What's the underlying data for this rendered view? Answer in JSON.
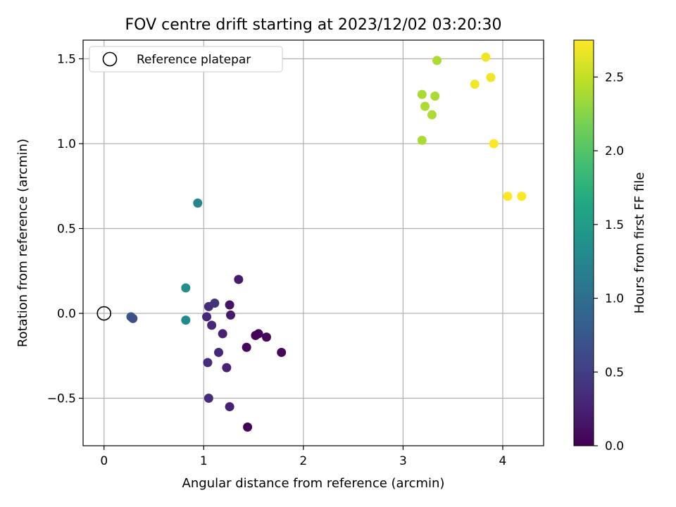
{
  "chart_data": {
    "type": "scatter",
    "title": "FOV centre drift starting at 2023/12/02 03:20:30",
    "xlabel": "Angular distance from reference (arcmin)",
    "ylabel": "Rotation from reference (arcmin)",
    "xlim": [
      -0.21,
      4.41
    ],
    "ylim": [
      -0.78,
      1.61
    ],
    "xticks": [
      0,
      1,
      2,
      3,
      4
    ],
    "xtick_labels": [
      "0",
      "1",
      "2",
      "3",
      "4"
    ],
    "yticks": [
      -0.5,
      0.0,
      0.5,
      1.0,
      1.5
    ],
    "ytick_labels": [
      "−0.5",
      "0.0",
      "0.5",
      "1.0",
      "1.5"
    ],
    "grid": true,
    "legend": {
      "position": "top-left",
      "entries": [
        "Reference platepar"
      ]
    },
    "reference_point": {
      "x": 0,
      "y": 0,
      "label": "Reference platepar"
    },
    "colorbar": {
      "label": "Hours from first FF file",
      "colormap": "viridis",
      "range": [
        0.0,
        2.75
      ],
      "ticks": [
        0.0,
        0.5,
        1.0,
        1.5,
        2.0,
        2.5
      ],
      "tick_labels": [
        "0.0",
        "0.5",
        "1.0",
        "1.5",
        "2.0",
        "2.5"
      ]
    },
    "points": [
      {
        "x": 1.44,
        "y": -0.67,
        "h": 0.02
      },
      {
        "x": 1.26,
        "y": -0.55,
        "h": 0.25
      },
      {
        "x": 1.05,
        "y": -0.5,
        "h": 0.35
      },
      {
        "x": 1.04,
        "y": -0.29,
        "h": 0.35
      },
      {
        "x": 1.23,
        "y": -0.32,
        "h": 0.25
      },
      {
        "x": 1.15,
        "y": -0.23,
        "h": 0.3
      },
      {
        "x": 1.19,
        "y": -0.12,
        "h": 0.25
      },
      {
        "x": 1.43,
        "y": -0.2,
        "h": 0.05
      },
      {
        "x": 1.52,
        "y": -0.13,
        "h": 0.04
      },
      {
        "x": 1.55,
        "y": -0.12,
        "h": 0.03
      },
      {
        "x": 1.63,
        "y": -0.14,
        "h": 0.05
      },
      {
        "x": 1.78,
        "y": -0.23,
        "h": 0.06
      },
      {
        "x": 1.03,
        "y": -0.02,
        "h": 0.3
      },
      {
        "x": 1.08,
        "y": -0.07,
        "h": 0.3
      },
      {
        "x": 1.05,
        "y": 0.04,
        "h": 0.35
      },
      {
        "x": 1.11,
        "y": 0.06,
        "h": 0.4
      },
      {
        "x": 1.26,
        "y": 0.05,
        "h": 0.15
      },
      {
        "x": 1.27,
        "y": -0.01,
        "h": 0.2
      },
      {
        "x": 1.35,
        "y": 0.2,
        "h": 0.2
      },
      {
        "x": 0.27,
        "y": -0.02,
        "h": 0.75
      },
      {
        "x": 0.29,
        "y": -0.03,
        "h": 0.65
      },
      {
        "x": 0.82,
        "y": 0.15,
        "h": 1.35
      },
      {
        "x": 0.82,
        "y": -0.04,
        "h": 1.3
      },
      {
        "x": 0.94,
        "y": 0.65,
        "h": 1.25
      },
      {
        "x": 3.19,
        "y": 1.29,
        "h": 2.4
      },
      {
        "x": 3.32,
        "y": 1.28,
        "h": 2.4
      },
      {
        "x": 3.22,
        "y": 1.22,
        "h": 2.4
      },
      {
        "x": 3.29,
        "y": 1.17,
        "h": 2.4
      },
      {
        "x": 3.19,
        "y": 1.02,
        "h": 2.4
      },
      {
        "x": 3.34,
        "y": 1.49,
        "h": 2.4
      },
      {
        "x": 3.72,
        "y": 1.35,
        "h": 2.7
      },
      {
        "x": 3.83,
        "y": 1.51,
        "h": 2.7
      },
      {
        "x": 3.88,
        "y": 1.39,
        "h": 2.7
      },
      {
        "x": 3.91,
        "y": 1.0,
        "h": 2.75
      },
      {
        "x": 4.05,
        "y": 0.69,
        "h": 2.75
      },
      {
        "x": 4.19,
        "y": 0.69,
        "h": 2.75
      }
    ]
  }
}
